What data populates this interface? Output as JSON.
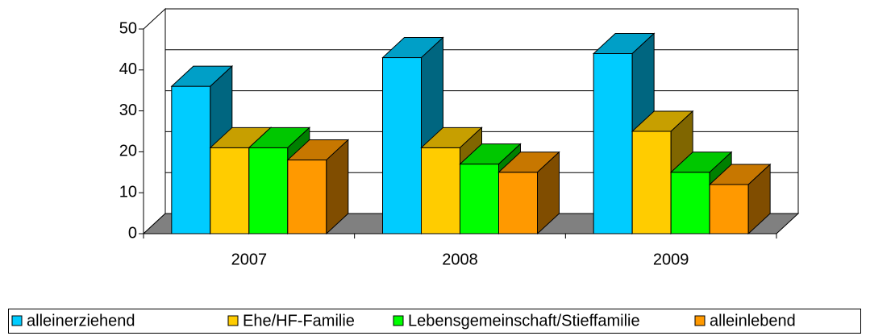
{
  "chart_data": {
    "type": "bar3d",
    "categories": [
      "2007",
      "2008",
      "2009"
    ],
    "series": [
      {
        "name": "alleinerziehend",
        "color": "#00ccff",
        "values": [
          36,
          43,
          44
        ]
      },
      {
        "name": "Ehe/HF-Familie",
        "color": "#ffcc00",
        "values": [
          21,
          21,
          25
        ]
      },
      {
        "name": "Lebensgemeinschaft/Stieffamilie",
        "color": "#00ff00",
        "values": [
          21,
          17,
          15
        ]
      },
      {
        "name": "alleinlebend",
        "color": "#ff9900",
        "values": [
          18,
          15,
          12
        ]
      }
    ],
    "ylim": [
      0,
      50
    ],
    "yticks": [
      0,
      10,
      20,
      30,
      40,
      50
    ],
    "grid": true,
    "legend": "bottom"
  }
}
